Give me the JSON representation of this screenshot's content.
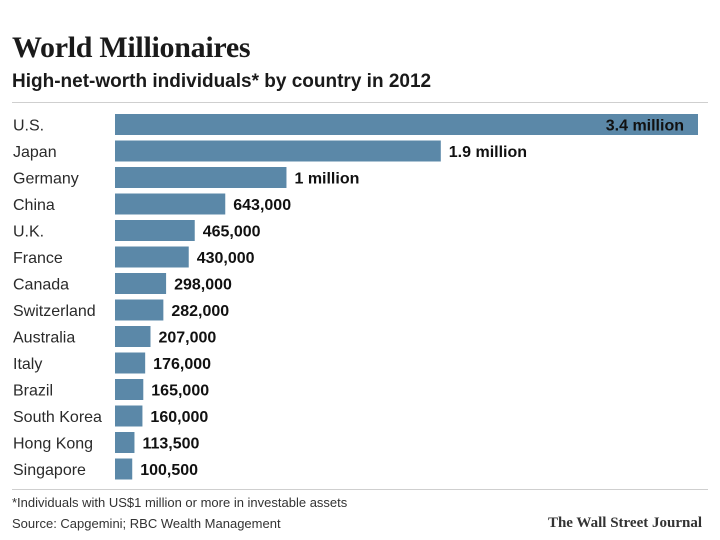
{
  "colors": {
    "bar": "#5b88a8",
    "text": "#1a1a1a",
    "inside_label": "#ffffff"
  },
  "chart_data": {
    "type": "bar",
    "orientation": "horizontal",
    "title": "World Millionaires",
    "subtitle": "High-net-worth individuals* by country in 2012",
    "categories": [
      "U.S.",
      "Japan",
      "Germany",
      "China",
      "U.K.",
      "France",
      "Canada",
      "Switzerland",
      "Australia",
      "Italy",
      "Brazil",
      "South Korea",
      "Hong Kong",
      "Singapore"
    ],
    "values": [
      3400000,
      1900000,
      1000000,
      643000,
      465000,
      430000,
      298000,
      282000,
      207000,
      176000,
      165000,
      160000,
      113500,
      100500
    ],
    "data_labels": [
      "3.4 million",
      "1.9 million",
      "1 million",
      "643,000",
      "465,000",
      "430,000",
      "298,000",
      "282,000",
      "207,000",
      "176,000",
      "165,000",
      "160,000",
      "113,500",
      "100,500"
    ],
    "xlim": [
      0,
      3400000
    ],
    "grid": false,
    "xlabel": "",
    "ylabel": ""
  },
  "footnote": "*Individuals with US$1 million or more in investable assets",
  "source": "Source: Capgemini; RBC Wealth Management",
  "credit": "The Wall Street Journal"
}
